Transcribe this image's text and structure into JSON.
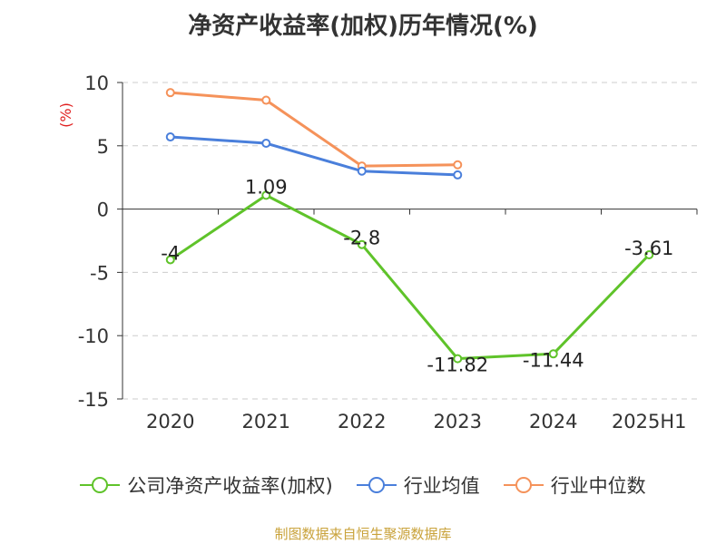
{
  "title": "净资产收益率(加权)历年情况(%)",
  "source": "制图数据来自恒生聚源数据库",
  "chart_data": {
    "type": "line",
    "title": "净资产收益率(加权)历年情况(%)",
    "ylabel": "(%)",
    "categories": [
      "2020",
      "2021",
      "2022",
      "2023",
      "2024",
      "2025H1"
    ],
    "ylim": [
      -15,
      10
    ],
    "yticks": [
      10,
      5,
      0,
      -5,
      -10,
      -15
    ],
    "grid": true,
    "legend_position": "bottom",
    "series": [
      {
        "name": "公司净资产收益率(加权)",
        "color": "#5fc32a",
        "values": [
          -4,
          1.09,
          -2.8,
          -11.82,
          -11.44,
          -3.61
        ],
        "labels": [
          "-4",
          "1.09",
          "-2.8",
          "-11.82",
          "-11.44",
          "-3.61"
        ]
      },
      {
        "name": "行业均值",
        "color": "#4a7fdb",
        "values": [
          5.7,
          5.2,
          3.0,
          2.7,
          null,
          null
        ]
      },
      {
        "name": "行业中位数",
        "color": "#f5925a",
        "values": [
          9.2,
          8.6,
          3.4,
          3.5,
          null,
          null
        ]
      }
    ]
  }
}
